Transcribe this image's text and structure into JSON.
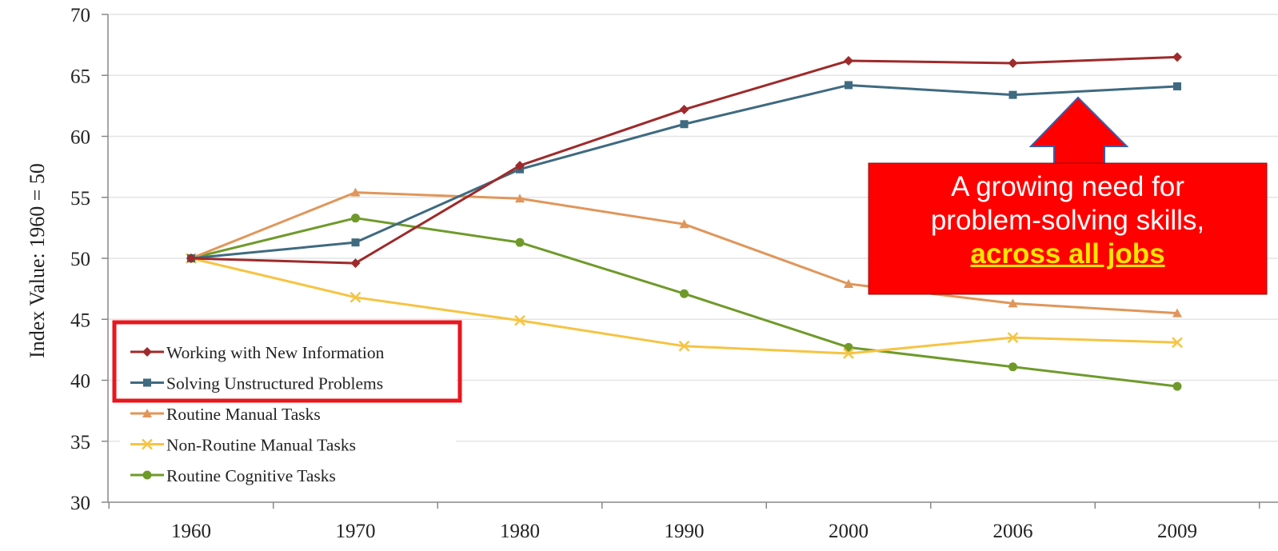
{
  "chart_data": {
    "type": "line",
    "title": "",
    "xlabel": "",
    "ylabel": "Index Value: 1960 = 50",
    "categories": [
      "1960",
      "1970",
      "1980",
      "1990",
      "2000",
      "2006",
      "2009"
    ],
    "ylim": [
      30,
      70
    ],
    "yticks": [
      30,
      35,
      40,
      45,
      50,
      55,
      60,
      65,
      70
    ],
    "grid": true,
    "legend_position": "bottom-left",
    "series": [
      {
        "name": "Working with New Information",
        "color": "#9e2a2b",
        "marker": "diamond",
        "values": [
          50.0,
          49.6,
          57.6,
          62.2,
          66.2,
          66.0,
          66.5
        ]
      },
      {
        "name": "Solving Unstructured Problems",
        "color": "#3f6a80",
        "marker": "square",
        "values": [
          50.0,
          51.3,
          57.3,
          61.0,
          64.2,
          63.4,
          64.1
        ]
      },
      {
        "name": "Routine Manual Tasks",
        "color": "#e0965a",
        "marker": "triangle",
        "values": [
          50.0,
          55.4,
          54.9,
          52.8,
          47.9,
          46.3,
          45.5
        ]
      },
      {
        "name": "Non-Routine Manual Tasks",
        "color": "#f6c443",
        "marker": "x",
        "values": [
          50.0,
          46.8,
          44.9,
          42.8,
          42.2,
          43.5,
          43.1
        ]
      },
      {
        "name": "Routine Cognitive Tasks",
        "color": "#6f9a2a",
        "marker": "circle",
        "values": [
          50.0,
          53.3,
          51.3,
          47.1,
          42.7,
          41.1,
          39.5
        ]
      }
    ]
  },
  "annotation": {
    "line1": "A growing need for",
    "line2": "problem-solving skills,",
    "emphasis": "across all jobs",
    "box_color": "#ff0000",
    "emphasis_color": "#ffe600"
  },
  "highlight_box_color": "#e8171e"
}
